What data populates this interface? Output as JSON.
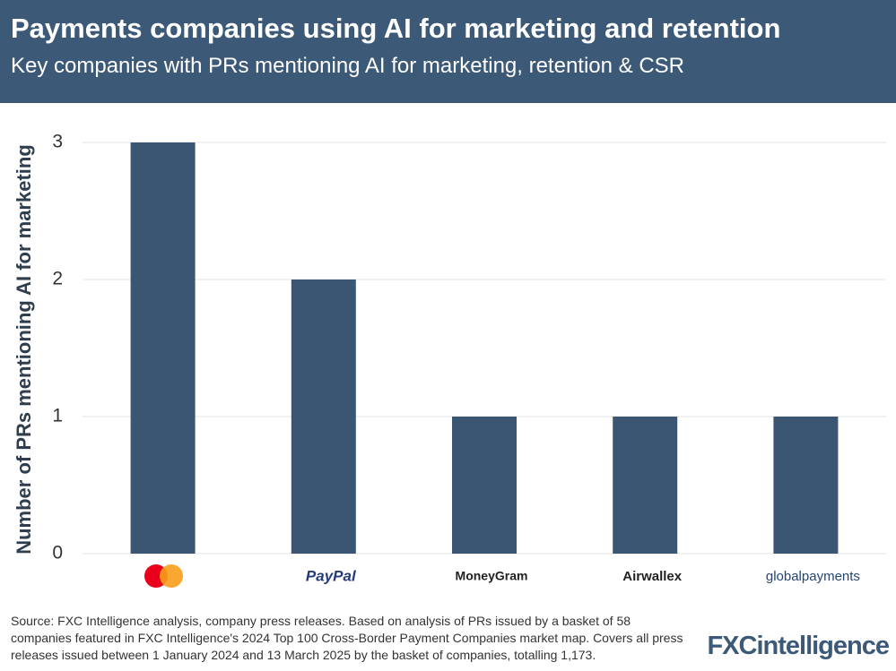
{
  "chart_data": {
    "type": "bar",
    "title": "Payments companies using AI for marketing and retention",
    "subtitle": "Key companies with PRs mentioning AI for marketing, retention & CSR",
    "y_label": "Number of PRs mentioning AI for marketing",
    "categories": [
      null,
      "PayPal",
      "MoneyGram",
      "Airwallex",
      "globalpayments"
    ],
    "values": [
      3,
      2,
      1,
      1,
      1
    ],
    "color": "#3a5673",
    "ylim": [
      0,
      3
    ],
    "yticks": [
      0,
      1,
      2,
      3
    ],
    "grid": true,
    "source": "Source: FXC Intelligence analysis, company press releases. Based on analysis of PRs issued by a basket of 58 companies featured in FXC Intelligence's 2024 Top 100 Cross-Border Payment Companies market map. Covers all press releases issued between 1 January 2024 and 13 March 2025 by the basket of companies, totalling 1,173.",
    "brand": "FXCintelligence"
  }
}
